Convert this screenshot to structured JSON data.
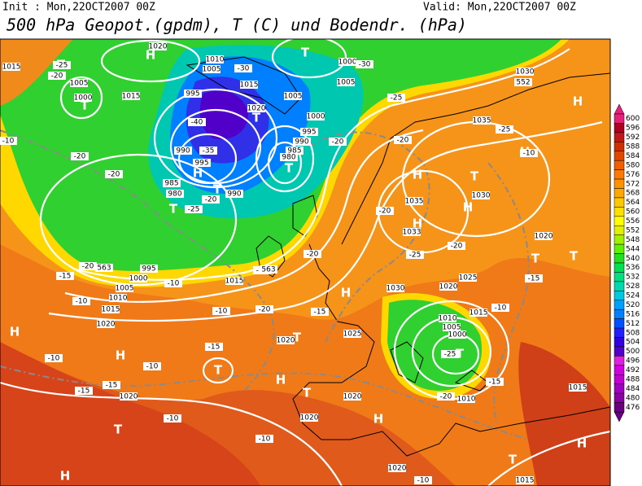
{
  "header": {
    "init": "Init : Mon,22OCT2007 00Z",
    "valid": "Valid: Mon,22OCT2007 00Z",
    "title": "500 hPa Geopot.(gpdm), T (C) und Bodendr. (hPa)"
  },
  "colorbar": {
    "levels": [
      600,
      596,
      592,
      588,
      584,
      580,
      576,
      572,
      568,
      564,
      560,
      556,
      552,
      548,
      544,
      540,
      536,
      532,
      528,
      524,
      520,
      516,
      512,
      508,
      504,
      500,
      496,
      492,
      488,
      484,
      480,
      476
    ],
    "colors": [
      "#e8207a",
      "#b00020",
      "#c01818",
      "#d03000",
      "#e04800",
      "#f06000",
      "#ff7800",
      "#ff9000",
      "#ffa800",
      "#ffc800",
      "#ffe000",
      "#ffff00",
      "#e0f000",
      "#a0f000",
      "#60f000",
      "#20e020",
      "#00e050",
      "#00e080",
      "#00d8b0",
      "#00c8e0",
      "#00a0ff",
      "#0080ff",
      "#0050ff",
      "#2020ff",
      "#3000e0",
      "#5000c8",
      "#e020e0",
      "#d000e0",
      "#c000d0",
      "#a000c0",
      "#8b00a0",
      "#6a0080"
    ]
  },
  "map_labels": [
    "T",
    "T",
    "H",
    "T",
    "T",
    "H",
    "T",
    "T",
    "T",
    "H",
    "T",
    "H",
    "H",
    "H",
    "T",
    "T",
    "H",
    "H",
    "T",
    "H",
    "T",
    "H",
    "T",
    "T",
    "H",
    "T",
    "H",
    "T",
    "H",
    "H",
    "1015",
    "1005",
    "1000",
    "1015",
    "1020",
    "1010",
    "1005",
    "1015",
    "1020",
    "1005",
    "995",
    "1000",
    "1005",
    "1000",
    "995",
    "990",
    "985",
    "980",
    "990",
    "995",
    "985",
    "980",
    "990",
    "1035",
    "1030",
    "1030",
    "1035",
    "1033",
    "1020",
    "1025",
    "1020",
    "1030",
    "1010",
    "1005",
    "1000",
    "1015",
    "1010",
    "1015",
    "1025",
    "1020",
    "1015",
    "995",
    "1000",
    "1005",
    "1010",
    "1015",
    "1020",
    "1020",
    "1020",
    "1020",
    "1020",
    "1015",
    "-25",
    "-20",
    "-30",
    "-25",
    "-30",
    "-40",
    "-35",
    "-20",
    "-25",
    "-20",
    "-20",
    "-10",
    "-25",
    "-20",
    "-20",
    "-10",
    "-20",
    "-25",
    "-20",
    "-20",
    "-15",
    "-20",
    "-15",
    "-10",
    "-10",
    "-10",
    "-15",
    "-10",
    "-15",
    "-10",
    "-15",
    "-15",
    "-10",
    "-10",
    "-10",
    "-15",
    "-15",
    "-10",
    "-20",
    "-25",
    "-20",
    "552",
    "563",
    "563"
  ]
}
